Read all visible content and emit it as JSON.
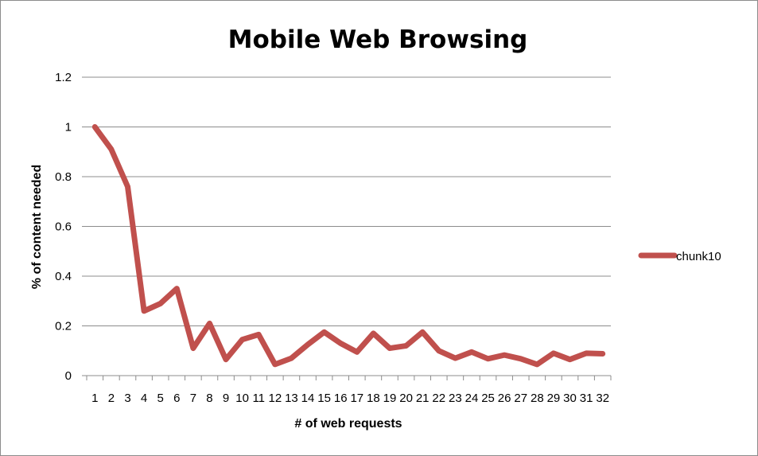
{
  "chart_data": {
    "type": "line",
    "title": "Mobile Web Browsing",
    "xlabel": "# of web requests",
    "ylabel": "% of content needed",
    "ylim": [
      0,
      1.2
    ],
    "yticks": [
      "0",
      "0.2",
      "0.4",
      "0.6",
      "0.8",
      "1",
      "1.2"
    ],
    "categories": [
      "1",
      "2",
      "3",
      "4",
      "5",
      "6",
      "7",
      "8",
      "9",
      "10",
      "11",
      "12",
      "13",
      "14",
      "15",
      "16",
      "17",
      "18",
      "19",
      "20",
      "21",
      "22",
      "23",
      "24",
      "25",
      "26",
      "27",
      "28",
      "29",
      "30",
      "31",
      "32"
    ],
    "series": [
      {
        "name": "chunk10",
        "color": "#c0504d",
        "values": [
          1.0,
          0.91,
          0.76,
          0.26,
          0.29,
          0.35,
          0.11,
          0.21,
          0.065,
          0.145,
          0.165,
          0.045,
          0.07,
          0.125,
          0.175,
          0.13,
          0.095,
          0.17,
          0.11,
          0.12,
          0.175,
          0.1,
          0.07,
          0.095,
          0.068,
          0.083,
          0.068,
          0.045,
          0.09,
          0.065,
          0.09,
          0.088
        ]
      }
    ],
    "grid": true,
    "legend_position": "right"
  }
}
